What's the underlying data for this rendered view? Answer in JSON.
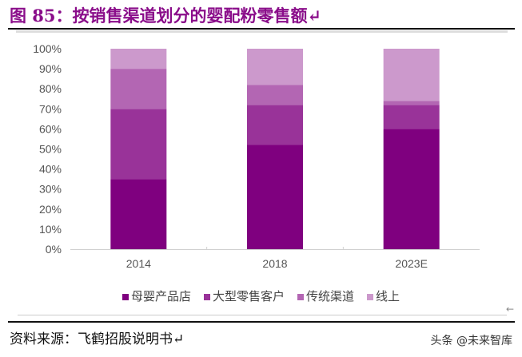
{
  "title": "图 85：按销售渠道划分的婴配粉零售额↵",
  "source": "资料来源：飞鹤招股说明书↵",
  "watermark": "头条 @未来智库",
  "chart_data": {
    "type": "bar",
    "stacked": true,
    "categories": [
      "2014",
      "2018",
      "2023E"
    ],
    "series": [
      {
        "name": "母婴产品店",
        "values": [
          35,
          52,
          60
        ],
        "color": "#7f007f"
      },
      {
        "name": "大型零售客户",
        "values": [
          35,
          20,
          12
        ],
        "color": "#993399"
      },
      {
        "name": "传统渠道",
        "values": [
          20,
          10,
          2
        ],
        "color": "#b366b3"
      },
      {
        "name": "线上",
        "values": [
          10,
          18,
          26
        ],
        "color": "#cc99cc"
      }
    ],
    "ylim": [
      0,
      100
    ],
    "yticks": [
      "0%",
      "10%",
      "20%",
      "30%",
      "40%",
      "50%",
      "60%",
      "70%",
      "80%",
      "90%",
      "100%"
    ],
    "grid": false,
    "legend": "bottom"
  }
}
